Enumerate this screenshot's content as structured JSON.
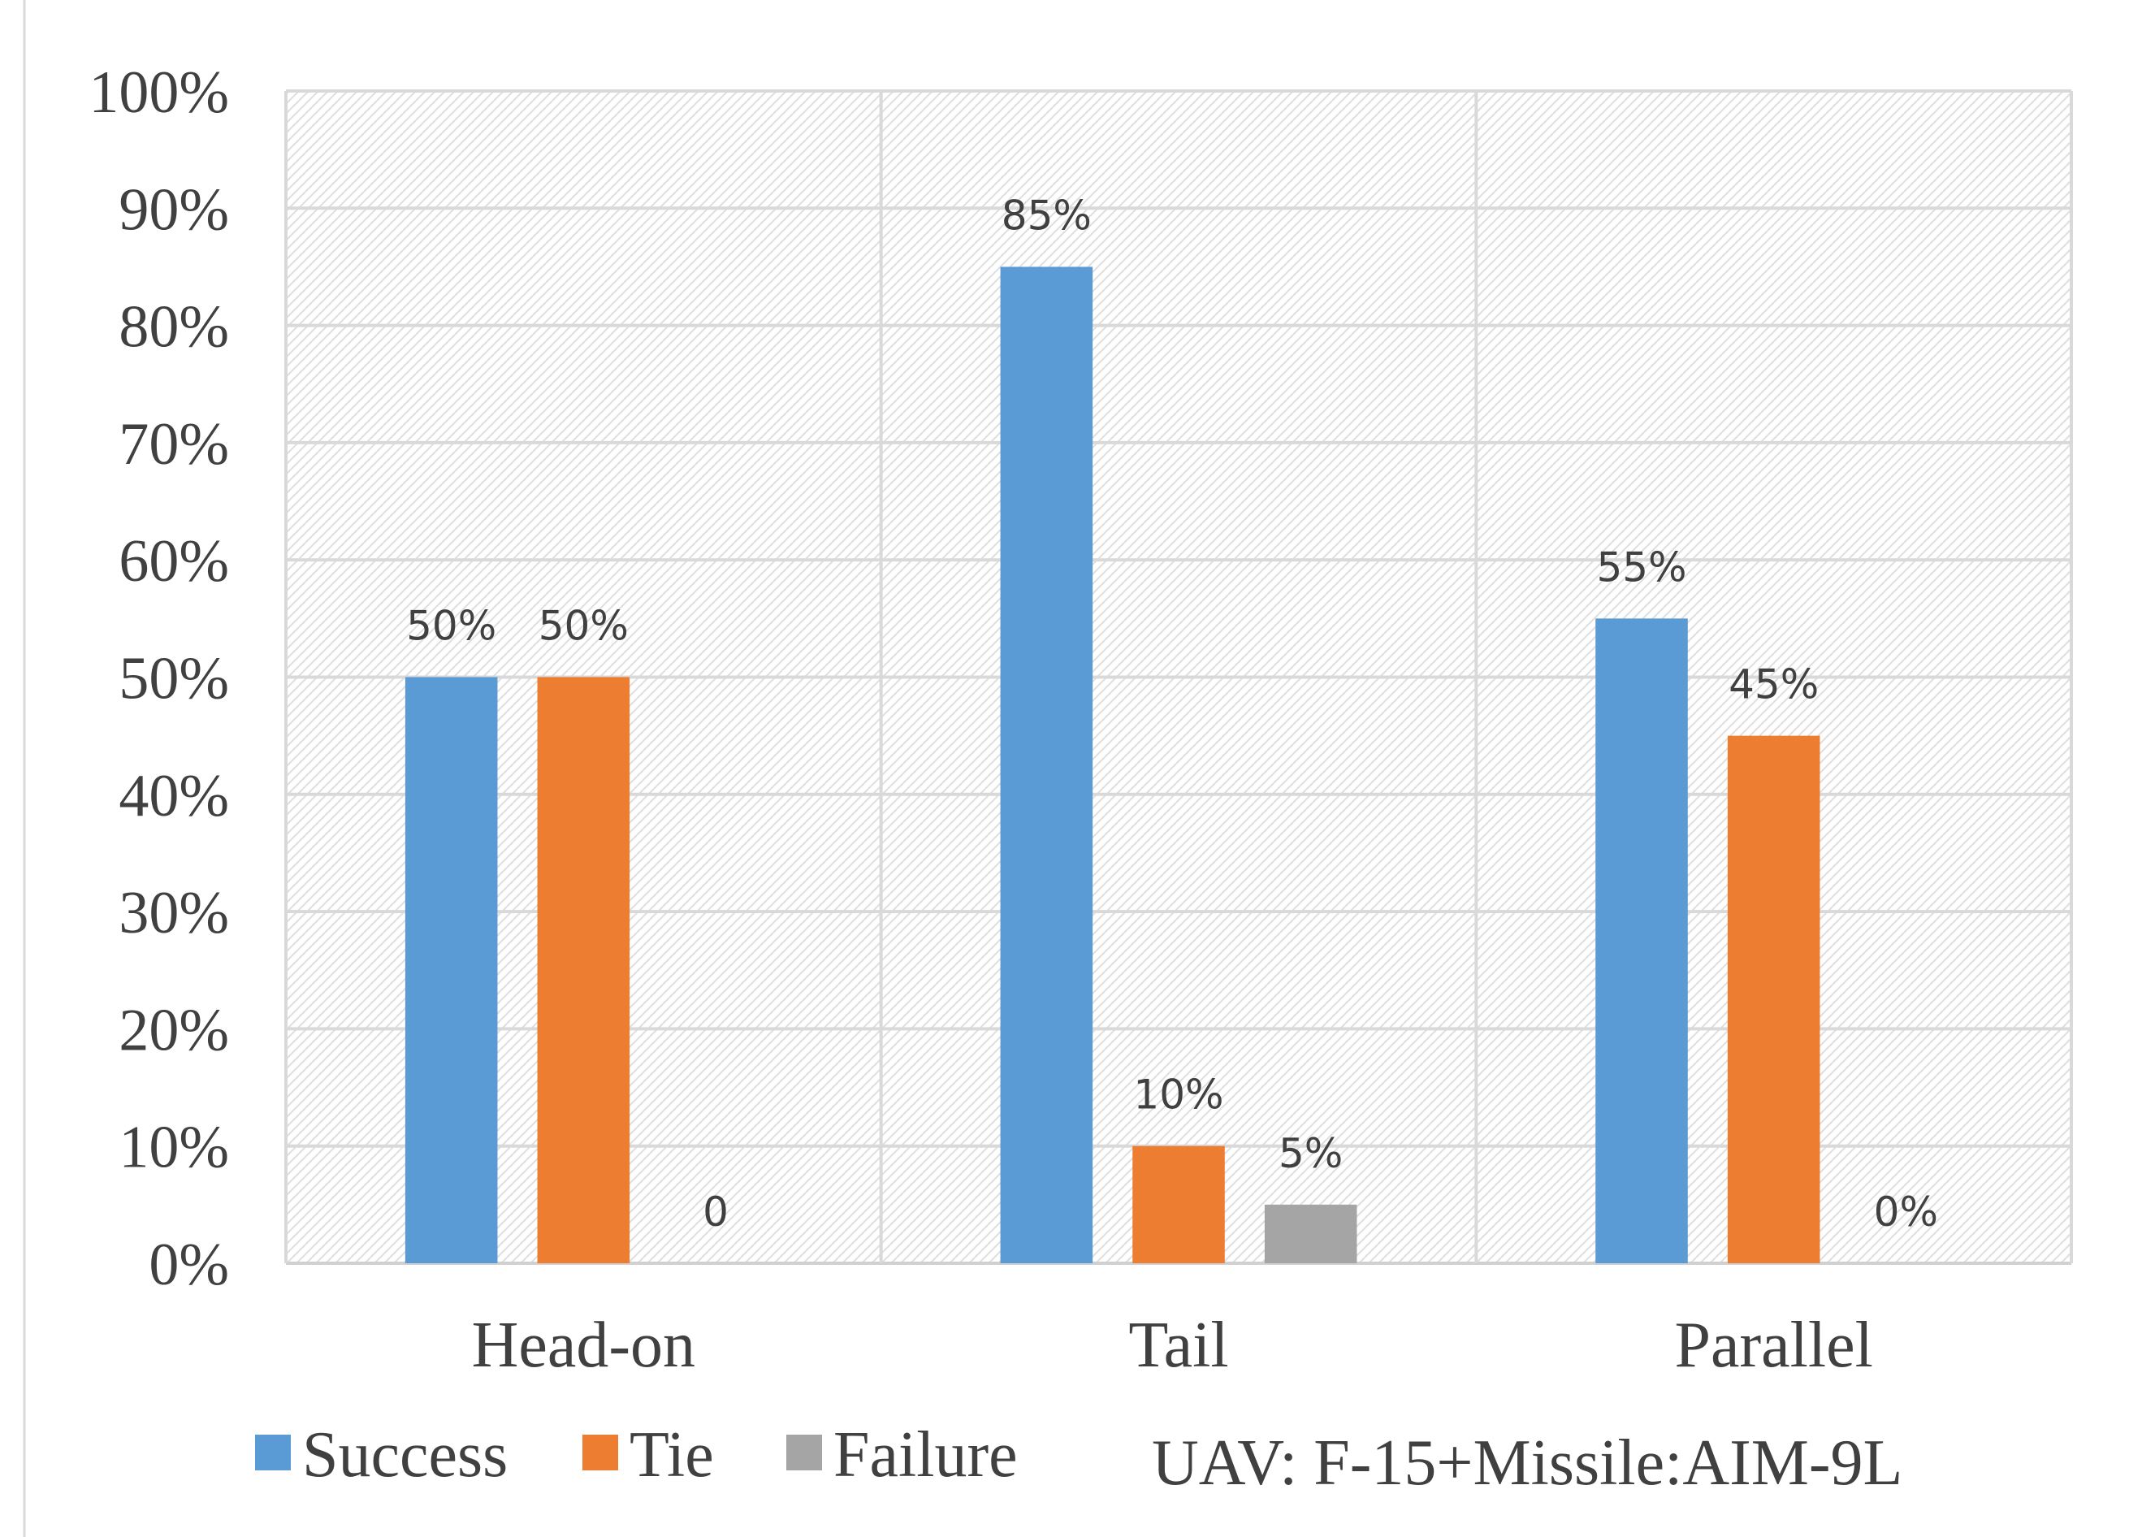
{
  "chart_data": {
    "type": "bar",
    "title": "",
    "xlabel": "",
    "ylabel": "",
    "ylim": [
      0,
      100
    ],
    "y_ticks": [
      "0%",
      "10%",
      "20%",
      "30%",
      "40%",
      "50%",
      "60%",
      "70%",
      "80%",
      "90%",
      "100%"
    ],
    "categories": [
      "Head-on",
      "Tail",
      "Parallel"
    ],
    "series": [
      {
        "name": "Success",
        "color": "#5B9BD5",
        "values": [
          50,
          85,
          55
        ],
        "labels": [
          "50%",
          "85%",
          "55%"
        ]
      },
      {
        "name": "Tie",
        "color": "#ED7D31",
        "values": [
          50,
          10,
          45
        ],
        "labels": [
          "50%",
          "10%",
          "45%"
        ]
      },
      {
        "name": "Failure",
        "color": "#A5A5A5",
        "values": [
          0,
          5,
          0
        ],
        "labels": [
          "0",
          "5%",
          "0%"
        ]
      }
    ],
    "legend_position": "bottom",
    "annotation": "UAV: F-15+Missile:AIM-9L",
    "grid": true
  }
}
